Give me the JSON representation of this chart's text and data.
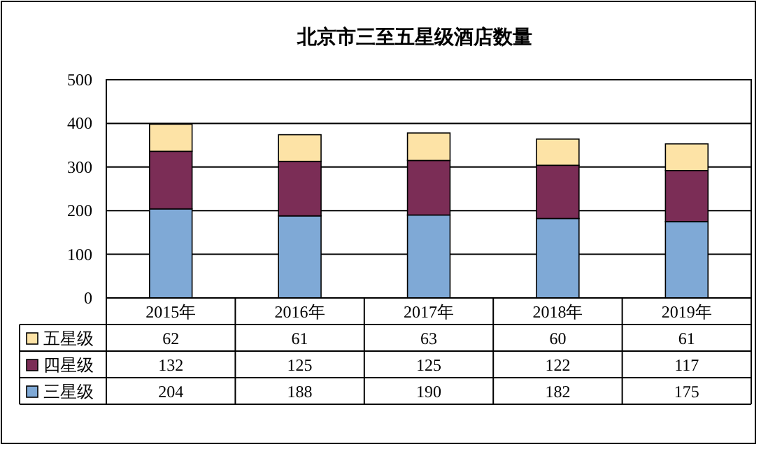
{
  "chart_data": {
    "type": "bar",
    "title": "北京市三至五星级酒店数量",
    "categories": [
      "2015年",
      "2016年",
      "2017年",
      "2018年",
      "2019年"
    ],
    "series": [
      {
        "name": "三星级",
        "color": "#7fa9d6",
        "values": [
          204,
          188,
          190,
          182,
          175
        ]
      },
      {
        "name": "四星级",
        "color": "#7b2d56",
        "values": [
          132,
          125,
          125,
          122,
          117
        ]
      },
      {
        "name": "五星级",
        "color": "#fde3a6",
        "values": [
          62,
          61,
          63,
          60,
          61
        ]
      }
    ],
    "stacked": true,
    "ylim": [
      0,
      500
    ],
    "yticks": [
      0,
      100,
      200,
      300,
      400,
      500
    ],
    "grid": "y",
    "legend": "bottom",
    "data_labels": true
  }
}
